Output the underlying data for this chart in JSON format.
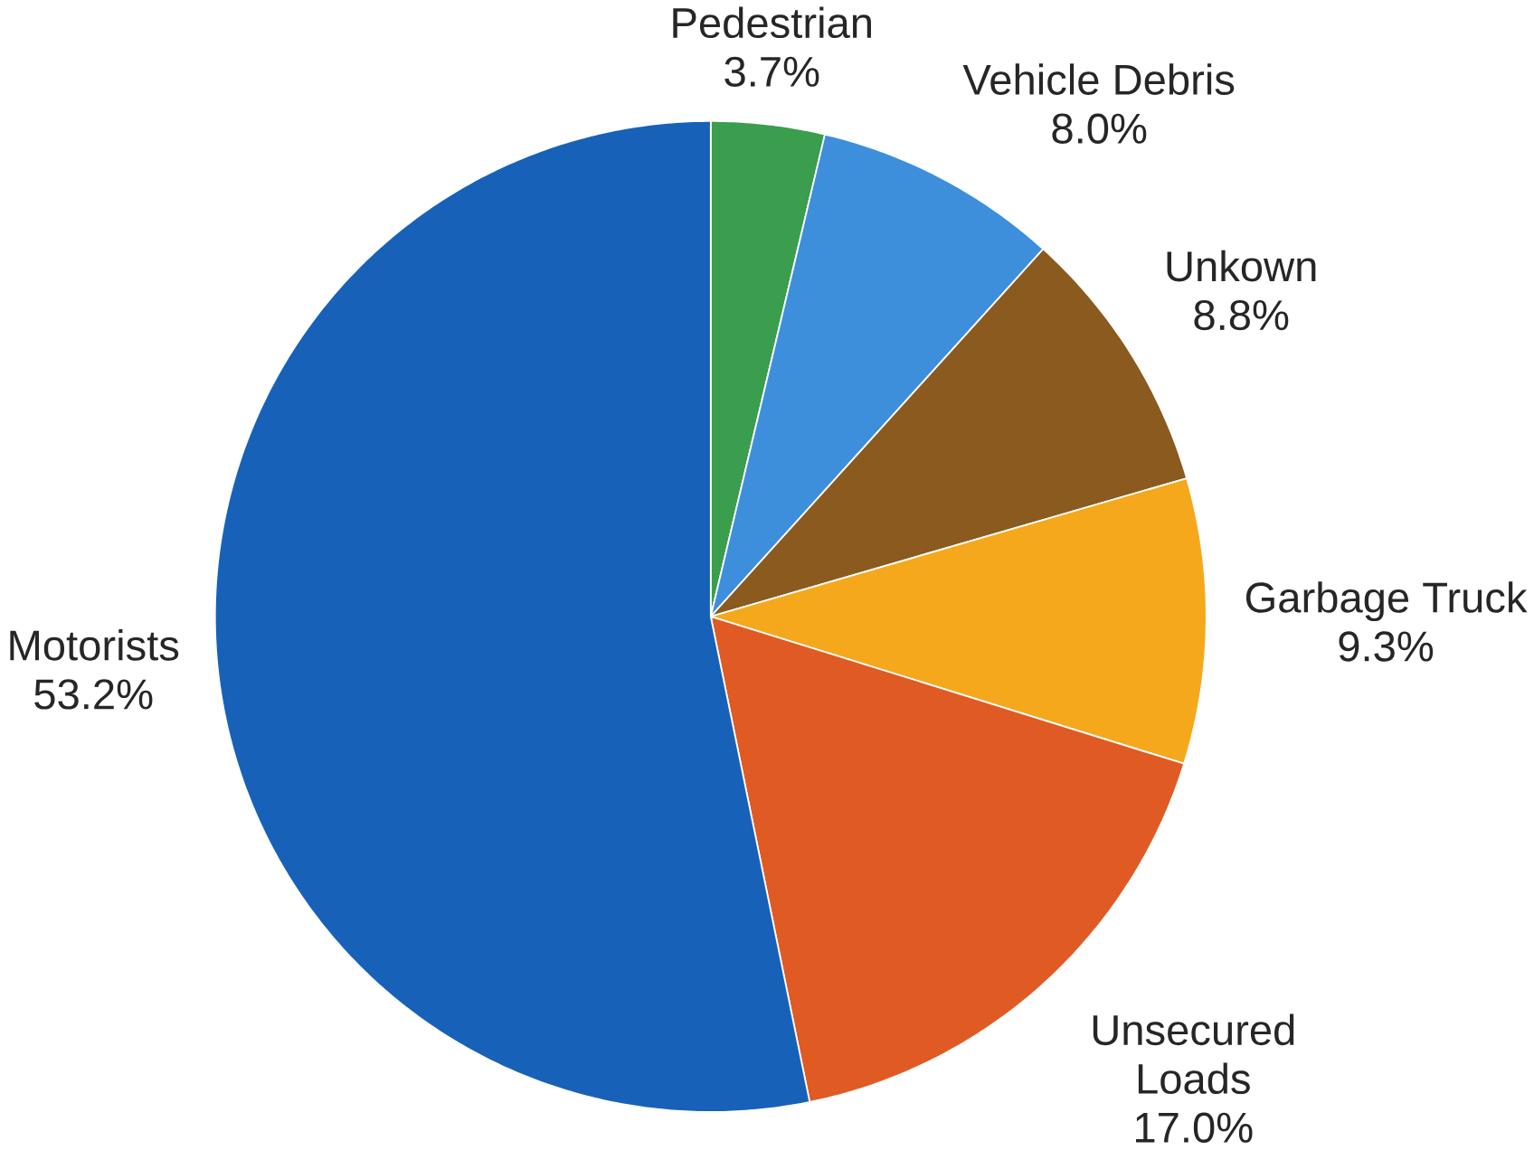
{
  "chart_data": {
    "type": "pie",
    "categories": [
      "Pedestrian",
      "Vehicle Debris",
      "Unkown",
      "Garbage Truck",
      "Unsecured Loads",
      "Motorists"
    ],
    "values": [
      3.7,
      8.0,
      8.8,
      9.3,
      17.0,
      53.2
    ],
    "value_labels": [
      "3.7%",
      "8.0%",
      "8.8%",
      "9.3%",
      "17.0%",
      "53.2%"
    ],
    "colors": [
      "#3a9e4e",
      "#3d8fdc",
      "#8b5a1e",
      "#f5a81c",
      "#e05a24",
      "#1762b8"
    ]
  }
}
